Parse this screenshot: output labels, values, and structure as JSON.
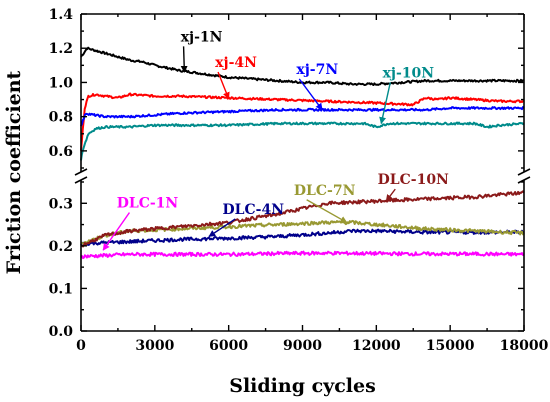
{
  "chart_data": {
    "type": "line",
    "title": "",
    "xlabel": "Sliding cycles",
    "ylabel": "Friction coefficient",
    "xlim": [
      0,
      18000
    ],
    "x_ticks": [
      0,
      3000,
      6000,
      9000,
      12000,
      15000,
      18000
    ],
    "y_axis_break": true,
    "upper_panel": {
      "ylim": [
        0.5,
        1.4
      ],
      "y_ticks": [
        0.6,
        0.8,
        1.0,
        1.2,
        1.4
      ],
      "tick_labels": [
        "0.6",
        "0.8",
        "1.0",
        "1.2",
        "1.4"
      ]
    },
    "lower_panel": {
      "ylim": [
        0.0,
        0.35
      ],
      "y_ticks": [
        0.0,
        0.1,
        0.2,
        0.3
      ],
      "tick_labels": [
        "0.0",
        "0.1",
        "0.2",
        "0.3"
      ]
    },
    "grid": false,
    "legend": "inline-labels",
    "series": [
      {
        "name": "xj-1N",
        "color": "#000000",
        "panel": "upper",
        "x": [
          0,
          250,
          500,
          1000,
          1500,
          2000,
          2500,
          3000,
          4000,
          5000,
          6000,
          7000,
          8000,
          9000,
          10000,
          11000,
          12000,
          13000,
          14000,
          15000,
          16000,
          17000,
          18000
        ],
        "y": [
          1.15,
          1.2,
          1.19,
          1.17,
          1.15,
          1.13,
          1.12,
          1.1,
          1.07,
          1.05,
          1.03,
          1.02,
          1.01,
          1.0,
          1.0,
          0.99,
          0.99,
          1.0,
          1.01,
          1.01,
          1.01,
          1.01,
          1.01
        ]
      },
      {
        "name": "xj-4N",
        "color": "#ff0000",
        "panel": "upper",
        "x": [
          0,
          150,
          300,
          600,
          1000,
          1500,
          2000,
          3000,
          4000,
          6000,
          8000,
          10000,
          12000,
          13500,
          14000,
          14500,
          15000,
          16000,
          17000,
          18000
        ],
        "y": [
          0.6,
          0.85,
          0.92,
          0.93,
          0.92,
          0.91,
          0.93,
          0.92,
          0.92,
          0.91,
          0.9,
          0.89,
          0.88,
          0.87,
          0.91,
          0.9,
          0.91,
          0.9,
          0.89,
          0.89
        ]
      },
      {
        "name": "xj-7N",
        "color": "#0000ff",
        "panel": "upper",
        "x": [
          0,
          200,
          500,
          1000,
          2000,
          3000,
          4000,
          6000,
          8000,
          10000,
          12000,
          13000,
          14000,
          15000,
          16000,
          17000,
          18000
        ],
        "y": [
          0.75,
          0.82,
          0.81,
          0.8,
          0.8,
          0.81,
          0.82,
          0.83,
          0.84,
          0.84,
          0.84,
          0.84,
          0.84,
          0.85,
          0.85,
          0.85,
          0.85
        ]
      },
      {
        "name": "xj-10N",
        "color": "#008b8b",
        "panel": "upper",
        "x": [
          0,
          100,
          300,
          600,
          1000,
          2000,
          3000,
          4000,
          6000,
          8000,
          10000,
          11500,
          12000,
          12500,
          14000,
          16000,
          16500,
          17000,
          18000
        ],
        "y": [
          0.55,
          0.62,
          0.7,
          0.73,
          0.74,
          0.74,
          0.75,
          0.75,
          0.75,
          0.76,
          0.76,
          0.76,
          0.74,
          0.76,
          0.76,
          0.76,
          0.74,
          0.75,
          0.76
        ]
      },
      {
        "name": "DLC-1N",
        "color": "#ff00ff",
        "panel": "lower",
        "x": [
          0,
          2000,
          4000,
          6000,
          8000,
          10000,
          12000,
          14000,
          16000,
          18000
        ],
        "y": [
          0.175,
          0.18,
          0.18,
          0.18,
          0.182,
          0.183,
          0.182,
          0.181,
          0.181,
          0.18
        ]
      },
      {
        "name": "DLC-4N",
        "color": "#00008b",
        "panel": "lower",
        "x": [
          0,
          2000,
          4000,
          6000,
          8000,
          10000,
          11000,
          12000,
          14000,
          16000,
          18000
        ],
        "y": [
          0.205,
          0.21,
          0.215,
          0.218,
          0.222,
          0.23,
          0.235,
          0.235,
          0.232,
          0.232,
          0.232
        ]
      },
      {
        "name": "DLC-7N",
        "color": "#999933",
        "panel": "lower",
        "x": [
          0,
          1000,
          2000,
          4000,
          6000,
          8000,
          10000,
          11000,
          12000,
          14000,
          16000,
          18000
        ],
        "y": [
          0.205,
          0.225,
          0.235,
          0.24,
          0.245,
          0.25,
          0.255,
          0.255,
          0.25,
          0.24,
          0.235,
          0.23
        ]
      },
      {
        "name": "DLC-10N",
        "color": "#8b1a1a",
        "panel": "lower",
        "x": [
          0,
          1000,
          2000,
          4000,
          6000,
          8000,
          10000,
          12000,
          14000,
          16000,
          18000
        ],
        "y": [
          0.2,
          0.225,
          0.235,
          0.245,
          0.255,
          0.275,
          0.3,
          0.305,
          0.31,
          0.315,
          0.325
        ]
      }
    ],
    "annotations": [
      {
        "text": "xj-1N",
        "series": "xj-1N",
        "point_x": 4200,
        "point_y": 1.06,
        "text_x": 4900,
        "text_y": 1.24
      },
      {
        "text": "xj-4N",
        "series": "xj-4N",
        "point_x": 6000,
        "point_y": 0.905,
        "text_x": 6300,
        "text_y": 1.09
      },
      {
        "text": "xj-7N",
        "series": "xj-7N",
        "point_x": 9800,
        "point_y": 0.84,
        "text_x": 9600,
        "text_y": 1.05
      },
      {
        "text": "xj-10N",
        "series": "xj-10N",
        "point_x": 12200,
        "point_y": 0.76,
        "text_x": 13300,
        "text_y": 1.03
      },
      {
        "text": "DLC-1N",
        "series": "DLC-1N",
        "point_x": 900,
        "point_y": 0.19,
        "text_x": 2700,
        "text_y": 0.29
      },
      {
        "text": "DLC-4N",
        "series": "DLC-4N",
        "point_x": 5200,
        "point_y": 0.222,
        "text_x": 7000,
        "text_y": 0.275
      },
      {
        "text": "DLC-7N",
        "series": "DLC-7N",
        "point_x": 10800,
        "point_y": 0.255,
        "text_x": 9900,
        "text_y": 0.32
      },
      {
        "text": "DLC-10N",
        "series": "DLC-10N",
        "point_x": 12400,
        "point_y": 0.305,
        "text_x": 13500,
        "text_y": 0.345
      }
    ]
  }
}
